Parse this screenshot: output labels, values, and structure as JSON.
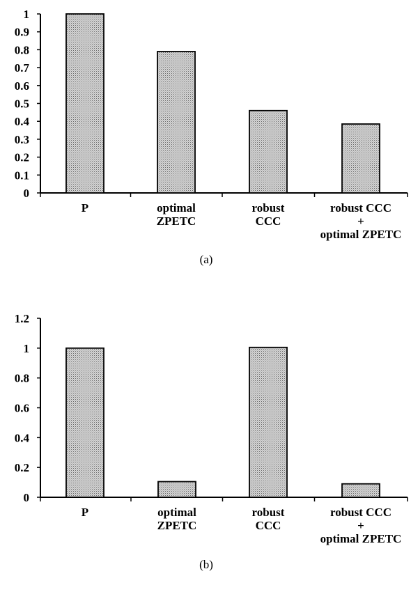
{
  "chart_data": [
    {
      "type": "bar",
      "caption": "(a)",
      "categories": [
        [
          "P"
        ],
        [
          "optimal",
          "ZPETC"
        ],
        [
          "robust",
          "CCC"
        ],
        [
          "robust CCC",
          "+",
          "optimal ZPETC"
        ]
      ],
      "values": [
        1.0,
        0.79,
        0.46,
        0.385
      ],
      "ylim": [
        0,
        1
      ],
      "yticks": [
        "0",
        "0.1",
        "0.2",
        "0.3",
        "0.4",
        "0.5",
        "0.6",
        "0.7",
        "0.8",
        "0.9",
        "1"
      ],
      "ytick_values": [
        0,
        0.1,
        0.2,
        0.3,
        0.4,
        0.5,
        0.6,
        0.7,
        0.8,
        0.9,
        1.0
      ],
      "grid": false,
      "bar_fill": "#b8b8b8"
    },
    {
      "type": "bar",
      "caption": "(b)",
      "categories": [
        [
          "P"
        ],
        [
          "optimal",
          "ZPETC"
        ],
        [
          "robust",
          "CCC"
        ],
        [
          "robust CCC",
          "+",
          "optimal ZPETC"
        ]
      ],
      "values": [
        1.0,
        0.105,
        1.005,
        0.09
      ],
      "ylim": [
        0,
        1.2
      ],
      "yticks": [
        "0",
        "0.2",
        "0.4",
        "0.6",
        "0.8",
        "1",
        "1.2"
      ],
      "ytick_values": [
        0,
        0.2,
        0.4,
        0.6,
        0.8,
        1.0,
        1.2
      ],
      "grid": false,
      "bar_fill": "#b8b8b8"
    }
  ]
}
